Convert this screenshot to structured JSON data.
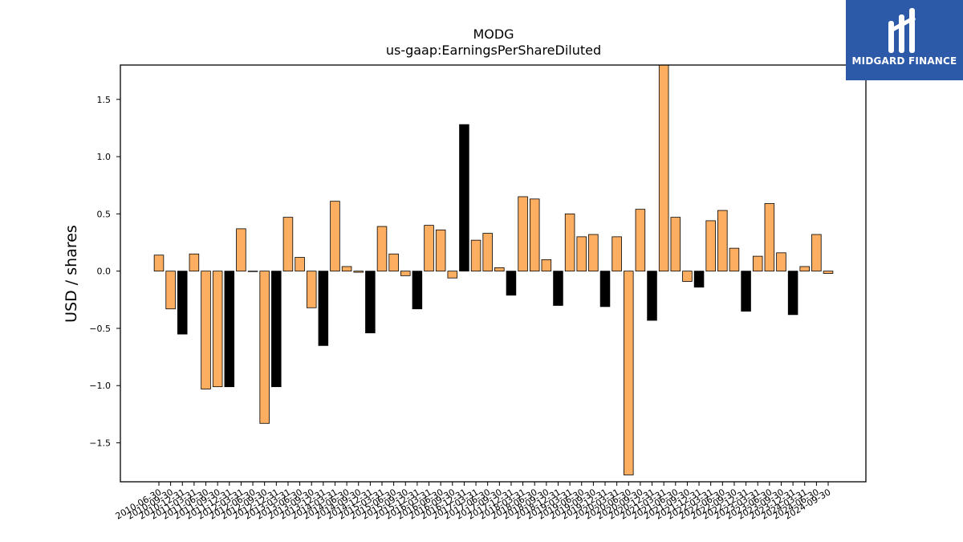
{
  "brand": {
    "name": "MIDGARD FINANCE",
    "icon": "midgard-logo-icon",
    "background_color": "#2d5aa8"
  },
  "chart_data": {
    "type": "bar",
    "title": "MODG",
    "subtitle": "us-gaap:EarningsPerShareDiluted",
    "xlabel": "",
    "ylabel": "USD / shares",
    "ylim": [
      -1.84,
      1.8
    ],
    "yticks": [
      -1.5,
      -1.0,
      -0.5,
      0.0,
      0.5,
      1.0,
      1.5
    ],
    "ytick_labels": [
      "−1.5",
      "−1.0",
      "−0.5",
      "0.0",
      "0.5",
      "1.0",
      "1.5"
    ],
    "grid": false,
    "colors": {
      "quarterly": "#fdae61",
      "derived": "#000000",
      "edge": "#000000"
    },
    "categories": [
      "2010-06-30",
      "2010-09-30",
      "2010-12-31",
      "2011-03-31",
      "2011-06-30",
      "2011-09-30",
      "2011-12-31",
      "2012-03-31",
      "2012-06-30",
      "2012-09-30",
      "2012-12-31",
      "2013-03-31",
      "2013-06-30",
      "2013-09-30",
      "2013-12-31",
      "2014-03-31",
      "2014-06-30",
      "2014-09-30",
      "2014-12-31",
      "2015-03-31",
      "2015-06-30",
      "2015-09-30",
      "2015-12-31",
      "2016-03-31",
      "2016-06-30",
      "2016-09-30",
      "2016-12-31",
      "2017-03-31",
      "2017-06-30",
      "2017-09-30",
      "2017-12-31",
      "2018-03-31",
      "2018-06-30",
      "2018-09-30",
      "2018-12-31",
      "2019-03-31",
      "2019-06-30",
      "2019-09-30",
      "2019-12-31",
      "2020-03-31",
      "2020-06-30",
      "2020-09-30",
      "2020-12-31",
      "2021-03-31",
      "2021-06-30",
      "2021-09-30",
      "2021-12-31",
      "2022-03-31",
      "2022-06-30",
      "2022-09-30",
      "2022-12-31",
      "2023-03-31",
      "2023-06-30",
      "2023-09-30",
      "2023-12-31",
      "2024-03-31",
      "2024-06-30",
      "2024-09-30"
    ],
    "values": [
      0.14,
      -0.33,
      -0.55,
      0.15,
      -1.03,
      -1.01,
      -1.01,
      0.37,
      0.0,
      -1.33,
      -1.01,
      0.47,
      0.12,
      -0.32,
      -0.65,
      0.61,
      0.04,
      -0.01,
      -0.54,
      0.39,
      0.15,
      -0.04,
      -0.33,
      0.4,
      0.36,
      -0.06,
      1.28,
      0.27,
      0.33,
      0.03,
      -0.21,
      0.65,
      0.63,
      0.1,
      -0.3,
      0.5,
      0.3,
      0.32,
      -0.31,
      0.3,
      -1.78,
      0.54,
      -0.43,
      1.8,
      0.47,
      -0.09,
      -0.14,
      0.44,
      0.53,
      0.2,
      -0.35,
      0.13,
      0.59,
      0.16,
      -0.38,
      0.04,
      0.32,
      -0.02
    ],
    "derived": [
      false,
      false,
      true,
      false,
      false,
      false,
      true,
      false,
      false,
      false,
      true,
      false,
      false,
      false,
      true,
      false,
      false,
      false,
      true,
      false,
      false,
      false,
      true,
      false,
      false,
      false,
      true,
      false,
      false,
      false,
      true,
      false,
      false,
      false,
      true,
      false,
      false,
      false,
      true,
      false,
      false,
      false,
      true,
      false,
      false,
      false,
      true,
      false,
      false,
      false,
      true,
      false,
      false,
      false,
      true,
      false,
      false,
      false
    ]
  }
}
